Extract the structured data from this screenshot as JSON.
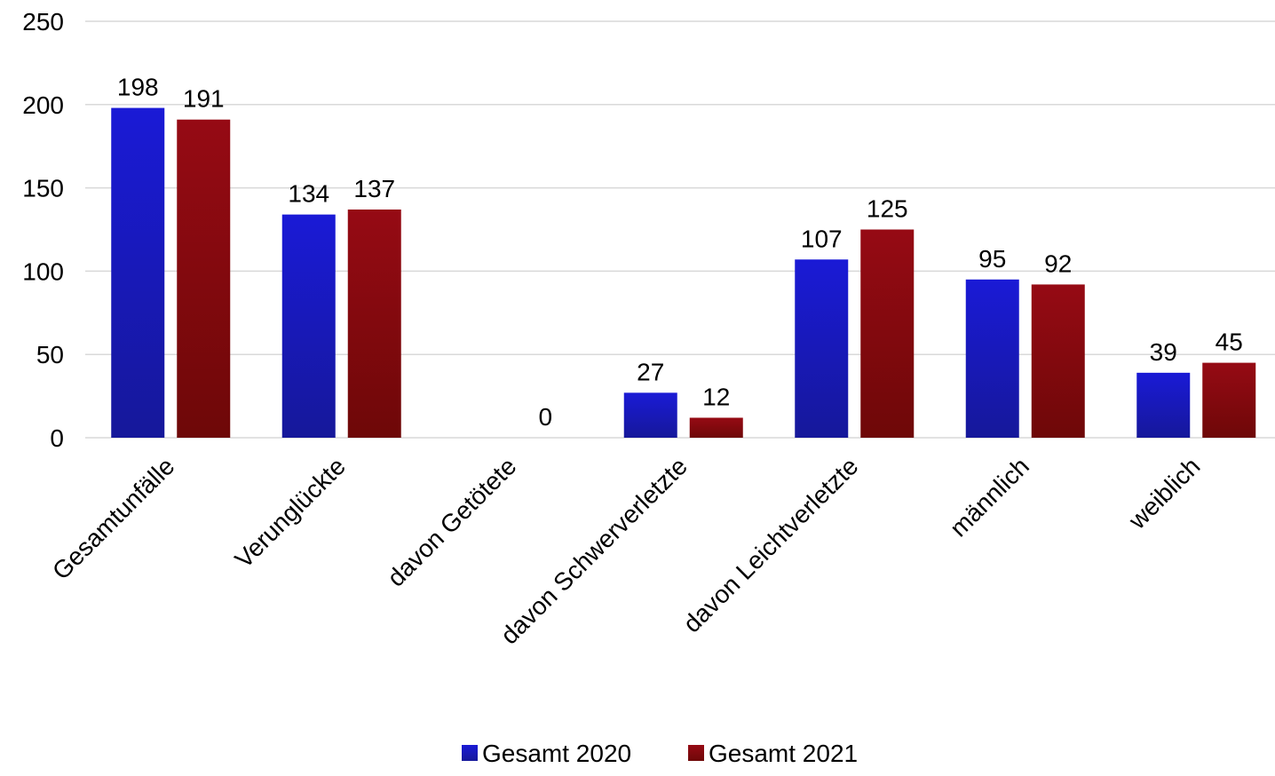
{
  "chart_data": {
    "type": "bar",
    "categories": [
      "Gesamtunfälle",
      "Verunglückte",
      "davon Getötete",
      "davon Schwerverletzte",
      "davon Leichtverletzte",
      "männlich",
      "weiblich"
    ],
    "series": [
      {
        "name": "Gesamt 2020",
        "values": [
          198,
          134,
          0,
          27,
          107,
          95,
          39
        ],
        "labels": [
          "198",
          "134",
          "",
          "27",
          "107",
          "95",
          "39"
        ],
        "color": "#1a1acc"
      },
      {
        "name": "Gesamt 2021",
        "values": [
          191,
          137,
          0,
          12,
          125,
          92,
          45
        ],
        "labels": [
          "191",
          "137",
          "0",
          "12",
          "125",
          "92",
          "45"
        ],
        "color": "#8b0a12"
      }
    ],
    "title": "",
    "xlabel": "",
    "ylabel": "",
    "ylim": [
      0,
      250
    ],
    "yticks": [
      0,
      50,
      100,
      150,
      200,
      250
    ],
    "ytick_labels": [
      "0",
      "50",
      "100",
      "150",
      "200",
      "250"
    ],
    "grid": true,
    "legend_position": "bottom"
  }
}
